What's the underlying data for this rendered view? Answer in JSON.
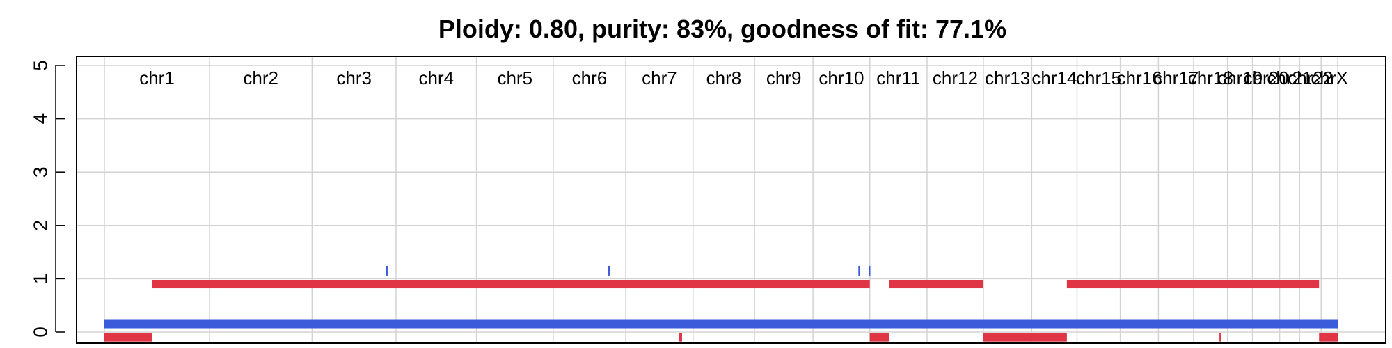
{
  "chart_data": {
    "type": "segment-plot",
    "title": "Ploidy: 0.80, purity: 83%, goodness of fit: 77.1%",
    "ylim": [
      0,
      5
    ],
    "y_ticks": [
      0,
      1,
      2,
      3,
      4,
      5
    ],
    "x_unit": "Mb (cumulative genome position)",
    "grid": true,
    "chromosomes": [
      {
        "name": "chr1",
        "start": 0,
        "end": 248
      },
      {
        "name": "chr2",
        "start": 248,
        "end": 490
      },
      {
        "name": "chr3",
        "start": 490,
        "end": 688
      },
      {
        "name": "chr4",
        "start": 688,
        "end": 878
      },
      {
        "name": "chr5",
        "start": 878,
        "end": 1059
      },
      {
        "name": "chr6",
        "start": 1059,
        "end": 1230
      },
      {
        "name": "chr7",
        "start": 1230,
        "end": 1389
      },
      {
        "name": "chr8",
        "start": 1389,
        "end": 1534
      },
      {
        "name": "chr9",
        "start": 1534,
        "end": 1672
      },
      {
        "name": "chr10",
        "start": 1672,
        "end": 1806
      },
      {
        "name": "chr11",
        "start": 1806,
        "end": 1941
      },
      {
        "name": "chr12",
        "start": 1941,
        "end": 2074
      },
      {
        "name": "chr13",
        "start": 2074,
        "end": 2188
      },
      {
        "name": "chr14",
        "start": 2188,
        "end": 2295
      },
      {
        "name": "chr15",
        "start": 2295,
        "end": 2397
      },
      {
        "name": "chr16",
        "start": 2397,
        "end": 2487
      },
      {
        "name": "chr17",
        "start": 2487,
        "end": 2570
      },
      {
        "name": "chr18",
        "start": 2570,
        "end": 2650
      },
      {
        "name": "chr19",
        "start": 2650,
        "end": 2709
      },
      {
        "name": "chr20",
        "start": 2709,
        "end": 2773
      },
      {
        "name": "chr21",
        "start": 2773,
        "end": 2820
      },
      {
        "name": "chr22",
        "start": 2820,
        "end": 2871
      },
      {
        "name": "chrX",
        "start": 2871,
        "end": 2910
      }
    ],
    "series": [
      {
        "color": "#3b5bdb",
        "segments": [
          {
            "start": 0,
            "end": 2910,
            "value": 0.15
          },
          {
            "start": 665,
            "end": 667,
            "value": 1.15
          },
          {
            "start": 1189,
            "end": 1191,
            "value": 1.15
          },
          {
            "start": 1779,
            "end": 1781,
            "value": 1.15
          },
          {
            "start": 1804,
            "end": 1806,
            "value": 1.15
          }
        ]
      },
      {
        "color": "#e03545",
        "segments": [
          {
            "start": 0,
            "end": 112,
            "value": -0.1
          },
          {
            "start": 112,
            "end": 1806,
            "value": 0.9
          },
          {
            "start": 1806,
            "end": 1852,
            "value": -0.1
          },
          {
            "start": 1852,
            "end": 2074,
            "value": 0.9
          },
          {
            "start": 2074,
            "end": 2271,
            "value": -0.1
          },
          {
            "start": 2271,
            "end": 2866,
            "value": 0.9
          },
          {
            "start": 2866,
            "end": 2910,
            "value": -0.1
          },
          {
            "start": 1356,
            "end": 1363,
            "value": -0.1
          },
          {
            "start": 2631,
            "end": 2634,
            "value": -0.1
          }
        ]
      }
    ]
  }
}
